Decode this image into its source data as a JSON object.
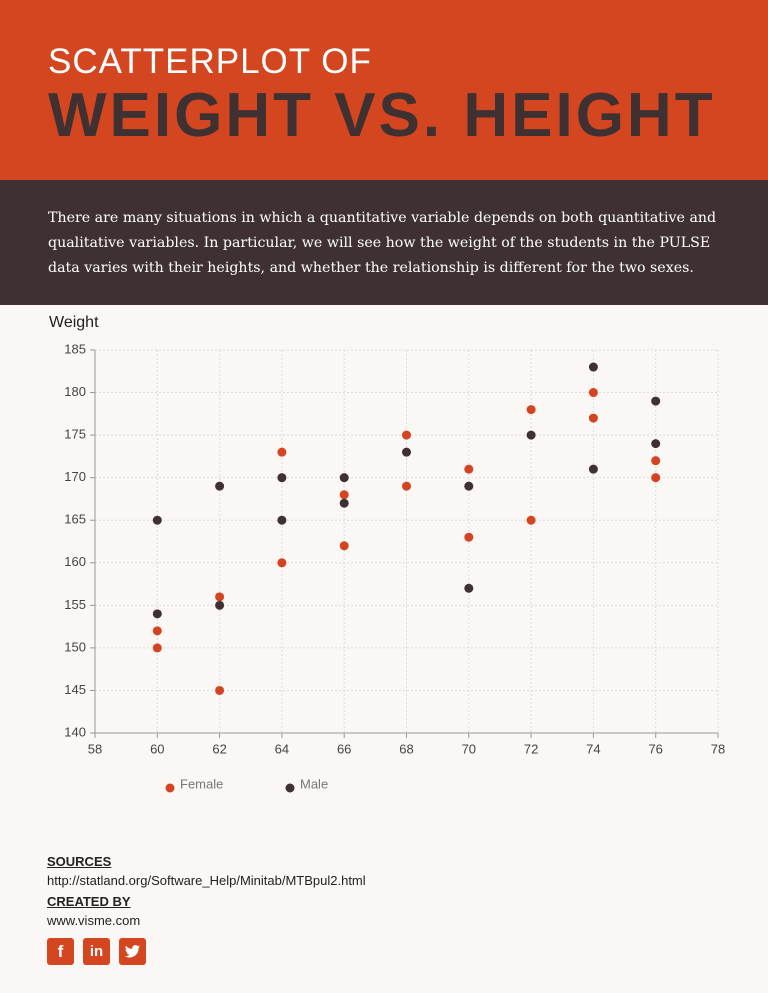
{
  "header": {
    "title_line1": "SCATTERPLOT OF",
    "title_line2": "WEIGHT VS. HEIGHT"
  },
  "description": "There are many situations in which a quantitative variable depends on both quantitative and qualitative variables. In particular, we will see how the weight of the students in the PULSE data varies with their heights, and whether the relationship is different for the two sexes.",
  "chart_data": {
    "type": "scatter",
    "y_label": "Weight",
    "series": [
      {
        "name": "Female",
        "color": "#d44420",
        "x": [
          60,
          60,
          62,
          62,
          64,
          64,
          66,
          66,
          68,
          68,
          70,
          70,
          72,
          72,
          74,
          74,
          76,
          76
        ],
        "values": [
          152,
          150,
          156,
          145,
          173,
          160,
          168,
          162,
          175,
          169,
          171,
          163,
          178,
          165,
          180,
          177,
          172,
          170
        ]
      },
      {
        "name": "Male",
        "color": "#3f3132",
        "x": [
          60,
          60,
          62,
          62,
          64,
          64,
          66,
          66,
          68,
          70,
          70,
          72,
          74,
          74,
          76,
          76
        ],
        "values": [
          165,
          154,
          169,
          155,
          170,
          165,
          170,
          167,
          173,
          169,
          157,
          175,
          183,
          171,
          179,
          174
        ]
      }
    ],
    "xlim": [
      58,
      78
    ],
    "xticks": [
      58,
      60,
      62,
      64,
      66,
      68,
      70,
      72,
      74,
      76,
      78
    ],
    "ylim": [
      140,
      185
    ],
    "yticks": [
      140,
      145,
      150,
      155,
      160,
      165,
      170,
      175,
      180,
      185
    ],
    "grid": true,
    "legend": "bottom"
  },
  "footer": {
    "sources_heading": "SOURCES",
    "sources_url": "http://statland.org/Software_Help/Minitab/MTBpul2.html",
    "created_heading": "CREATED BY",
    "created_by": "www.visme.com",
    "social": [
      "f",
      "in"
    ]
  }
}
